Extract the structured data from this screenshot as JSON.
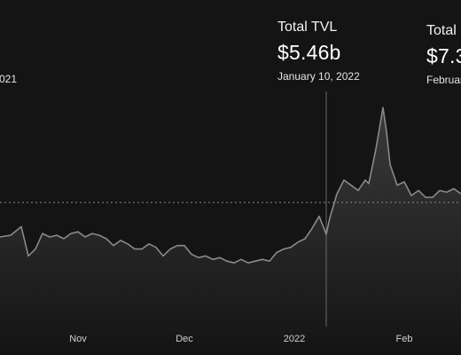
{
  "tooltip_primary": {
    "label": "Total TVL",
    "value": "$5.46b",
    "date": "January 10, 2022"
  },
  "tooltip_secondary": {
    "label": "Total",
    "value": "$7.3",
    "date": "Februar"
  },
  "left_date_fragment": "021",
  "colors": {
    "background": "#141414",
    "line": "#8a8a8a",
    "area_top": "#3a3a3a",
    "crosshair": "#6a6a6a",
    "reference_line": "#8a8a8a"
  },
  "chart_data": {
    "type": "area",
    "title": "",
    "xlabel": "",
    "ylabel": "",
    "x_ticks": [
      "Nov",
      "Dec",
      "2022",
      "Feb"
    ],
    "x_tick_dates": [
      "2021-11-01",
      "2021-12-01",
      "2022-01-01",
      "2022-02-01"
    ],
    "xlim": [
      "2021-10-10",
      "2022-02-17"
    ],
    "ylim": [
      0,
      14
    ],
    "grid": false,
    "legend": "none",
    "crosshair_date": "2022-01-10",
    "reference_value": 7.3,
    "series": [
      {
        "dates": [
          "2021-10-10",
          "2021-10-13",
          "2021-10-16",
          "2021-10-18",
          "2021-10-20",
          "2021-10-22",
          "2021-10-24",
          "2021-10-26",
          "2021-10-28",
          "2021-10-30",
          "2021-11-01",
          "2021-11-03",
          "2021-11-05",
          "2021-11-07",
          "2021-11-09",
          "2021-11-11",
          "2021-11-13",
          "2021-11-15",
          "2021-11-17",
          "2021-11-19",
          "2021-11-21",
          "2021-11-23",
          "2021-11-25",
          "2021-11-27",
          "2021-11-29",
          "2021-12-01",
          "2021-12-03",
          "2021-12-05",
          "2021-12-07",
          "2021-12-09",
          "2021-12-11",
          "2021-12-13",
          "2021-12-15",
          "2021-12-17",
          "2021-12-19",
          "2021-12-21",
          "2021-12-23",
          "2021-12-25",
          "2021-12-27",
          "2021-12-29",
          "2021-12-31",
          "2022-01-02",
          "2022-01-04",
          "2022-01-06",
          "2022-01-08",
          "2022-01-10",
          "2022-01-11",
          "2022-01-13",
          "2022-01-15",
          "2022-01-17",
          "2022-01-19",
          "2022-01-21",
          "2022-01-22",
          "2022-01-24",
          "2022-01-25",
          "2022-01-26",
          "2022-01-27",
          "2022-01-28",
          "2022-01-30",
          "2022-02-01",
          "2022-02-03",
          "2022-02-05",
          "2022-02-07",
          "2022-02-09",
          "2022-02-11",
          "2022-02-13",
          "2022-02-15",
          "2022-02-17"
        ],
        "values": [
          5.3,
          5.4,
          5.9,
          4.2,
          4.6,
          5.5,
          5.3,
          5.4,
          5.2,
          5.5,
          5.6,
          5.3,
          5.5,
          5.4,
          5.2,
          4.8,
          5.1,
          4.9,
          4.6,
          4.6,
          4.9,
          4.7,
          4.2,
          4.6,
          4.8,
          4.8,
          4.3,
          4.1,
          4.2,
          4.0,
          4.1,
          3.9,
          3.8,
          4.0,
          3.8,
          3.9,
          4.0,
          3.9,
          4.4,
          4.6,
          4.7,
          5.0,
          5.2,
          5.8,
          6.5,
          5.46,
          6.4,
          7.8,
          8.6,
          8.3,
          8.0,
          8.6,
          8.4,
          10.4,
          11.6,
          12.8,
          11.4,
          9.5,
          8.3,
          8.5,
          7.7,
          8.0,
          7.6,
          7.6,
          8.0,
          7.9,
          8.1,
          7.8
        ]
      }
    ]
  }
}
